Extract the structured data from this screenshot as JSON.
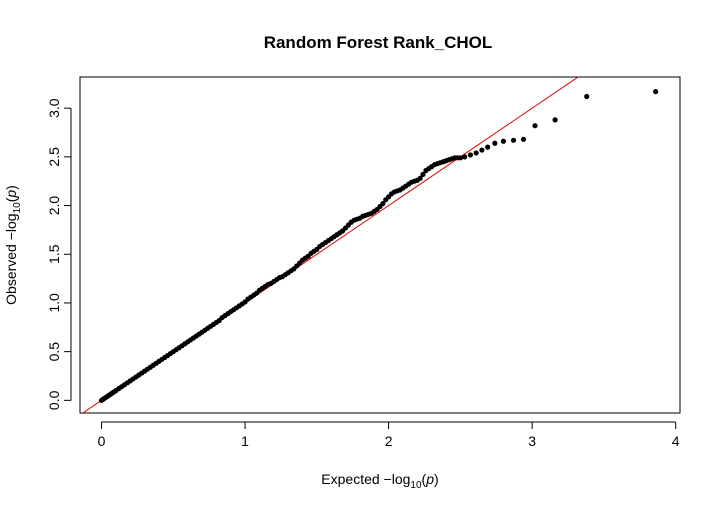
{
  "chart_data": {
    "type": "scatter",
    "title": "Random Forest Rank_CHOL",
    "xlabel": {
      "prefix": "Expected  −log",
      "sub": "10",
      "open": "(",
      "var": "p",
      "close": ")"
    },
    "ylabel": {
      "prefix": "Observed  −log",
      "sub": "10",
      "open": "(",
      "var": "p",
      "close": ")"
    },
    "xlim": [
      -0.15,
      4.03
    ],
    "ylim": [
      -0.13,
      3.32
    ],
    "xticks": [
      0,
      1,
      2,
      3,
      4
    ],
    "xtick_labels": [
      "0",
      "1",
      "2",
      "3",
      "4"
    ],
    "yticks": [
      0,
      0.5,
      1,
      1.5,
      2,
      2.5,
      3
    ],
    "ytick_labels": [
      "0.0",
      "0.5",
      "1.0",
      "1.5",
      "2.0",
      "2.5",
      "3.0"
    ],
    "grid": false,
    "reference_line": {
      "type": "y=x",
      "color": "#e00000"
    },
    "point_color": "#000000",
    "x": [
      0.0,
      0.01,
      0.02,
      0.03,
      0.04,
      0.05,
      0.06,
      0.07,
      0.08,
      0.09,
      0.1,
      0.12,
      0.14,
      0.16,
      0.18,
      0.2,
      0.22,
      0.24,
      0.26,
      0.28,
      0.3,
      0.32,
      0.34,
      0.36,
      0.38,
      0.4,
      0.42,
      0.44,
      0.46,
      0.48,
      0.5,
      0.52,
      0.54,
      0.56,
      0.58,
      0.6,
      0.62,
      0.64,
      0.66,
      0.68,
      0.7,
      0.72,
      0.74,
      0.76,
      0.78,
      0.8,
      0.82,
      0.84,
      0.86,
      0.88,
      0.9,
      0.92,
      0.94,
      0.96,
      0.98,
      1.0,
      1.02,
      1.04,
      1.06,
      1.08,
      1.1,
      1.12,
      1.14,
      1.16,
      1.18,
      1.2,
      1.22,
      1.24,
      1.26,
      1.28,
      1.3,
      1.32,
      1.34,
      1.36,
      1.38,
      1.4,
      1.42,
      1.44,
      1.46,
      1.48,
      1.5,
      1.52,
      1.54,
      1.56,
      1.58,
      1.6,
      1.62,
      1.64,
      1.66,
      1.68,
      1.7,
      1.72,
      1.74,
      1.76,
      1.78,
      1.8,
      1.82,
      1.84,
      1.86,
      1.88,
      1.9,
      1.92,
      1.94,
      1.96,
      1.98,
      2.0,
      2.02,
      2.04,
      2.06,
      2.08,
      2.1,
      2.12,
      2.14,
      2.16,
      2.18,
      2.2,
      2.22,
      2.24,
      2.26,
      2.28,
      2.3,
      2.32,
      2.34,
      2.36,
      2.38,
      2.4,
      2.42,
      2.44,
      2.46,
      2.48,
      2.5,
      2.53,
      2.57,
      2.61,
      2.65,
      2.69,
      2.74,
      2.8,
      2.87,
      2.94,
      3.02,
      3.16,
      3.38,
      3.86
    ],
    "y": [
      0.0,
      0.01,
      0.02,
      0.03,
      0.04,
      0.05,
      0.06,
      0.07,
      0.08,
      0.09,
      0.1,
      0.12,
      0.14,
      0.16,
      0.18,
      0.2,
      0.22,
      0.24,
      0.26,
      0.28,
      0.3,
      0.32,
      0.34,
      0.36,
      0.38,
      0.4,
      0.42,
      0.44,
      0.46,
      0.48,
      0.5,
      0.52,
      0.54,
      0.56,
      0.58,
      0.6,
      0.62,
      0.64,
      0.66,
      0.68,
      0.7,
      0.72,
      0.74,
      0.76,
      0.78,
      0.8,
      0.82,
      0.85,
      0.87,
      0.89,
      0.91,
      0.93,
      0.95,
      0.97,
      0.99,
      1.01,
      1.04,
      1.06,
      1.08,
      1.1,
      1.13,
      1.15,
      1.17,
      1.19,
      1.2,
      1.22,
      1.24,
      1.26,
      1.27,
      1.29,
      1.31,
      1.33,
      1.35,
      1.38,
      1.41,
      1.44,
      1.46,
      1.48,
      1.51,
      1.53,
      1.55,
      1.58,
      1.6,
      1.62,
      1.64,
      1.66,
      1.68,
      1.7,
      1.72,
      1.74,
      1.77,
      1.8,
      1.83,
      1.85,
      1.86,
      1.87,
      1.89,
      1.9,
      1.91,
      1.92,
      1.94,
      1.96,
      1.99,
      2.02,
      2.06,
      2.09,
      2.12,
      2.14,
      2.15,
      2.16,
      2.18,
      2.2,
      2.22,
      2.24,
      2.25,
      2.26,
      2.28,
      2.32,
      2.36,
      2.38,
      2.4,
      2.42,
      2.43,
      2.44,
      2.45,
      2.46,
      2.47,
      2.48,
      2.49,
      2.49,
      2.49,
      2.5,
      2.52,
      2.54,
      2.57,
      2.6,
      2.64,
      2.66,
      2.67,
      2.68,
      2.82,
      2.88,
      3.12,
      3.17
    ]
  }
}
